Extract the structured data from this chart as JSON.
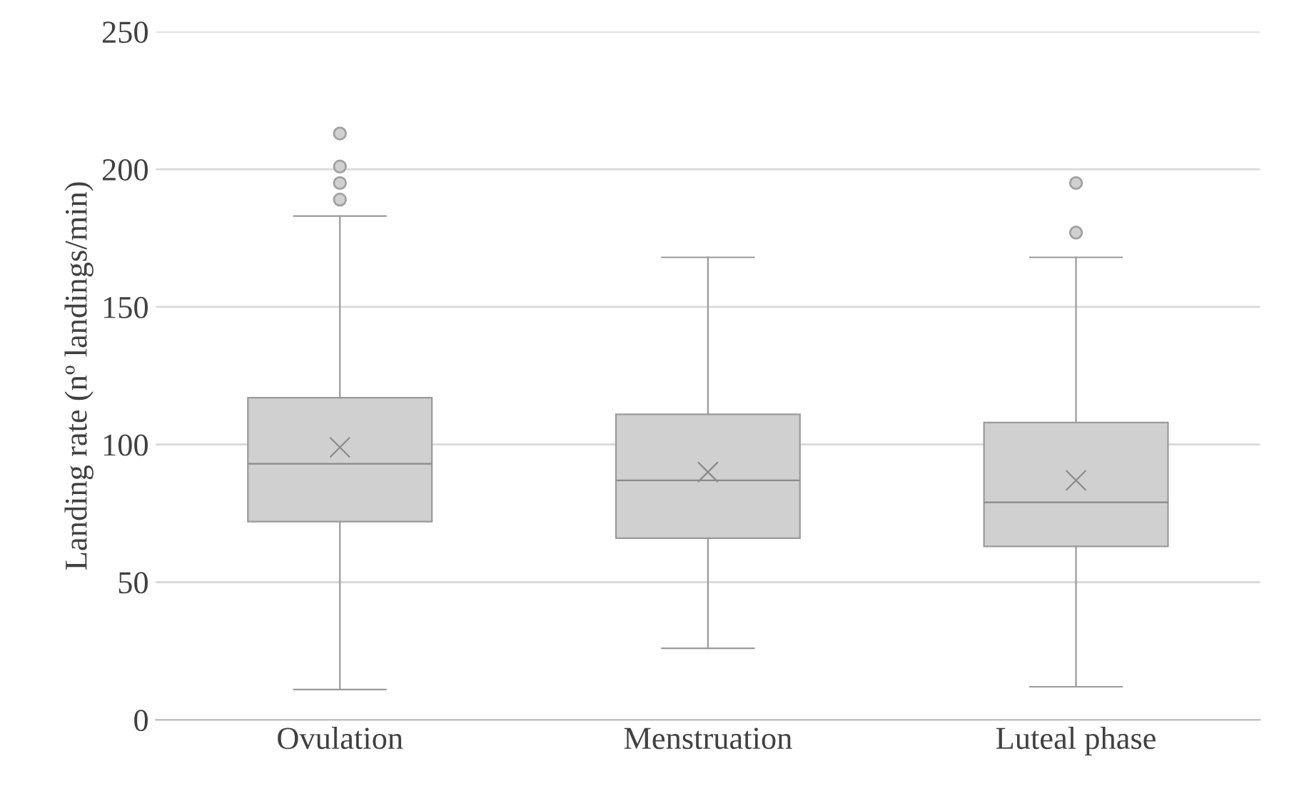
{
  "chart_data": {
    "type": "box",
    "ylabel": "Landing rate (nº landings/min)",
    "categories": [
      "Ovulation",
      "Menstruation",
      "Luteal phase"
    ],
    "boxes": [
      {
        "low": 11,
        "q1": 72,
        "median": 93,
        "q3": 117,
        "high": 183,
        "mean": 99,
        "outliers": [
          189,
          195,
          201,
          213
        ]
      },
      {
        "low": 26,
        "q1": 66,
        "median": 87,
        "q3": 111,
        "high": 168,
        "mean": 90
      },
      {
        "low": 12,
        "q1": 63,
        "median": 79,
        "q3": 108,
        "high": 168,
        "mean": 87,
        "outliers": [
          177,
          195
        ]
      }
    ],
    "color": "#d0d0d0",
    "ylim": [
      0,
      250
    ],
    "yticks": [
      0,
      50,
      100,
      150,
      200,
      250
    ],
    "grid": "y"
  }
}
